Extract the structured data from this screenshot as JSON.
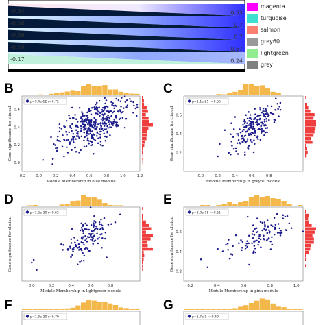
{
  "top_panel": {
    "rows": [
      {
        "left_value": "-0.34",
        "right_value": "0.53",
        "color": "#ff00ff"
      },
      {
        "left_value": "-0.58",
        "right_value": "0.7",
        "color": "#40e0d0"
      },
      {
        "left_value": "-0.59",
        "right_value": "0.7",
        "color": "#fa8072"
      },
      {
        "left_value": "-0.59",
        "right_value": "0.67",
        "color": "#999999"
      },
      {
        "left_value": "-0.17",
        "right_value": "0.24",
        "color": "#90ee90"
      }
    ],
    "legend": [
      {
        "label": "magenta",
        "color": "#ff00ff"
      },
      {
        "label": "turquoise",
        "color": "#40e0d0"
      },
      {
        "label": "salmon",
        "color": "#fa8072"
      },
      {
        "label": "grey60",
        "color": "#999999"
      },
      {
        "label": "lightgreen",
        "color": "#90ee90"
      },
      {
        "label": "grey",
        "color": "#808080"
      }
    ]
  },
  "panels": {
    "B": {
      "letter": "B",
      "legend_text": "p=9.4e-12 r=0.72",
      "xlabel": "Module Membership in blue module",
      "ylabel": "Gene significance for clinical"
    },
    "C": {
      "letter": "C",
      "legend_text": "p=1.1e-25 r=0.66",
      "xlabel": "Module Membership in grey60 module",
      "ylabel": "Gene significance for clinical"
    },
    "D": {
      "letter": "D",
      "legend_text": "p=3.2e-20 r=0.62",
      "xlabel": "Module Membership in lightgreen module",
      "ylabel": "Gene significance for clinical"
    },
    "E": {
      "letter": "E",
      "legend_text": "p=2.9e-18 r=0.61",
      "xlabel": "Module Membership in pink module",
      "ylabel": "Gene significance for clinical"
    },
    "F": {
      "letter": "F",
      "legend_text": "p=1.3e-20 r=0.70"
    },
    "G": {
      "letter": "G",
      "legend_text": "p=1.7e-9 r=0.49"
    }
  },
  "chart_data": [
    {
      "type": "scatter",
      "panel": "B",
      "xlabel": "Module Membership in blue module",
      "ylabel": "Gene significance for clinical",
      "xlim": [
        -0.2,
        1.2
      ],
      "ylim": [
        -0.1,
        0.75
      ],
      "xticks": [
        "-0.2",
        "0.0",
        "0.2",
        "0.4",
        "0.6",
        "0.8",
        "1.0",
        "1.2"
      ],
      "yticks": [
        "0.0",
        "0.2",
        "0.4",
        "0.6"
      ],
      "annotation": "p=9.4e-12 r=0.72",
      "cluster": {
        "x_center": 0.65,
        "y_center": 0.42,
        "x_spread": 0.2,
        "y_spread": 0.12,
        "slope": 0.4,
        "n": 380
      },
      "outliers": [
        [
          0.05,
          0.03
        ],
        [
          0.28,
          0.18
        ],
        [
          0.3,
          0.07
        ]
      ],
      "marginal": "histogram"
    },
    {
      "type": "scatter",
      "panel": "C",
      "xlabel": "Module Membership in grey60 module",
      "ylabel": "Gene significance for clinical",
      "xlim": [
        -0.2,
        1.2
      ],
      "ylim": [
        0.0,
        0.8
      ],
      "xticks": [
        "0.0",
        "0.2",
        "0.4",
        "0.6",
        "0.8"
      ],
      "yticks": [
        "0.2",
        "0.4",
        "0.6"
      ],
      "annotation": "p=1.1e-25 r=0.66",
      "cluster": {
        "x_center": 0.62,
        "y_center": 0.47,
        "x_spread": 0.14,
        "y_spread": 0.1,
        "slope": 0.55,
        "n": 190
      },
      "outliers": [
        [
          0.2,
          0.16
        ],
        [
          0.35,
          0.18
        ]
      ],
      "marginal": "histogram"
    },
    {
      "type": "scatter",
      "panel": "D",
      "xlabel": "Module Membership in lightgreen module",
      "ylabel": "Gene significance for clinical",
      "xlim": [
        -0.1,
        1.1
      ],
      "ylim": [
        0.0,
        0.8
      ],
      "xticks": [
        "0.0",
        "0.2",
        "0.4",
        "0.6",
        "0.8"
      ],
      "yticks": [],
      "annotation": "p=3.2e-20 r=0.62",
      "cluster": {
        "x_center": 0.58,
        "y_center": 0.47,
        "x_spread": 0.12,
        "y_spread": 0.1,
        "slope": 0.6,
        "n": 130
      },
      "outliers": [
        [
          0.0,
          0.2
        ],
        [
          0.02,
          0.23
        ],
        [
          0.05,
          0.12
        ]
      ],
      "marginal": "histogram"
    },
    {
      "type": "scatter",
      "panel": "E",
      "xlabel": "Module Membership in pink module",
      "ylabel": "Gene significance for clinical",
      "xlim": [
        0.15,
        1.05
      ],
      "ylim": [
        0.1,
        0.85
      ],
      "xticks": [
        "0.2",
        "0.4",
        "0.6",
        "0.8",
        "1.0"
      ],
      "yticks": [
        "0.2",
        "0.4",
        "0.6"
      ],
      "annotation": "p=2.9e-18 r=0.61",
      "cluster": {
        "x_center": 0.75,
        "y_center": 0.58,
        "x_spread": 0.14,
        "y_spread": 0.08,
        "slope": 0.55,
        "n": 110
      },
      "outliers": [
        [
          0.28,
          0.32
        ],
        [
          0.33,
          0.24
        ]
      ],
      "marginal": "histogram"
    }
  ]
}
